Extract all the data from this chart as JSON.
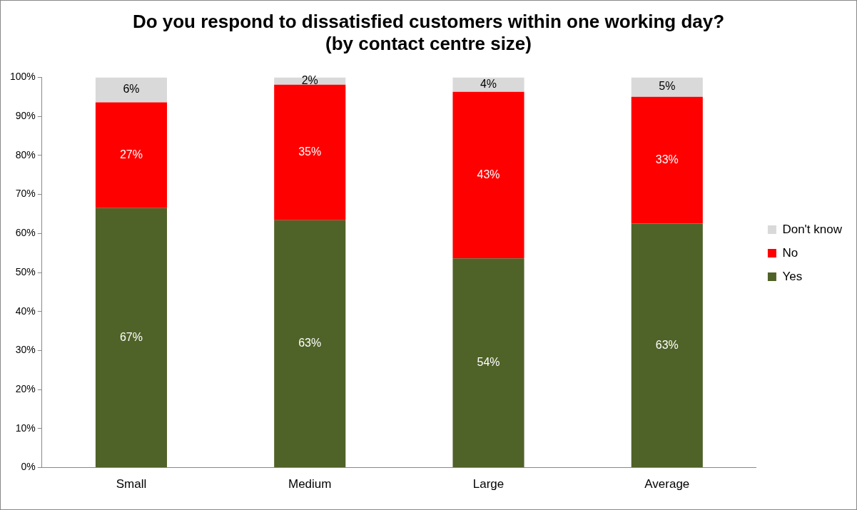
{
  "chart_data": {
    "type": "bar",
    "stacked": true,
    "title": "Do you respond to dissatisfied customers within one working day?\n(by contact centre size)",
    "categories": [
      "Small",
      "Medium",
      "Large",
      "Average"
    ],
    "series": [
      {
        "name": "Yes",
        "color": "#4f6228",
        "values": [
          66.5,
          63.4,
          53.6,
          62.5
        ],
        "value_labels": [
          "67%",
          "63%",
          "54%",
          "63%"
        ]
      },
      {
        "name": "No",
        "color": "#ff0000",
        "values": [
          27.1,
          34.7,
          42.7,
          32.5
        ],
        "value_labels": [
          "27%",
          "35%",
          "43%",
          "33%"
        ]
      },
      {
        "name": "Don't know",
        "color": "#d9d9d9",
        "values": [
          6.4,
          1.9,
          3.7,
          5.0
        ],
        "value_labels": [
          "6%",
          "2%",
          "4%",
          "5%"
        ]
      }
    ],
    "ylim": [
      0,
      100
    ],
    "yticks": [
      {
        "value": 0,
        "label": "0%"
      },
      {
        "value": 10,
        "label": "10%"
      },
      {
        "value": 20,
        "label": "20%"
      },
      {
        "value": 30,
        "label": "30%"
      },
      {
        "value": 40,
        "label": "40%"
      },
      {
        "value": 50,
        "label": "50%"
      },
      {
        "value": 60,
        "label": "60%"
      },
      {
        "value": 70,
        "label": "70%"
      },
      {
        "value": 80,
        "label": "80%"
      },
      {
        "value": 90,
        "label": "90%"
      },
      {
        "value": 100,
        "label": "100%"
      }
    ],
    "grid": false,
    "legend": "right"
  }
}
